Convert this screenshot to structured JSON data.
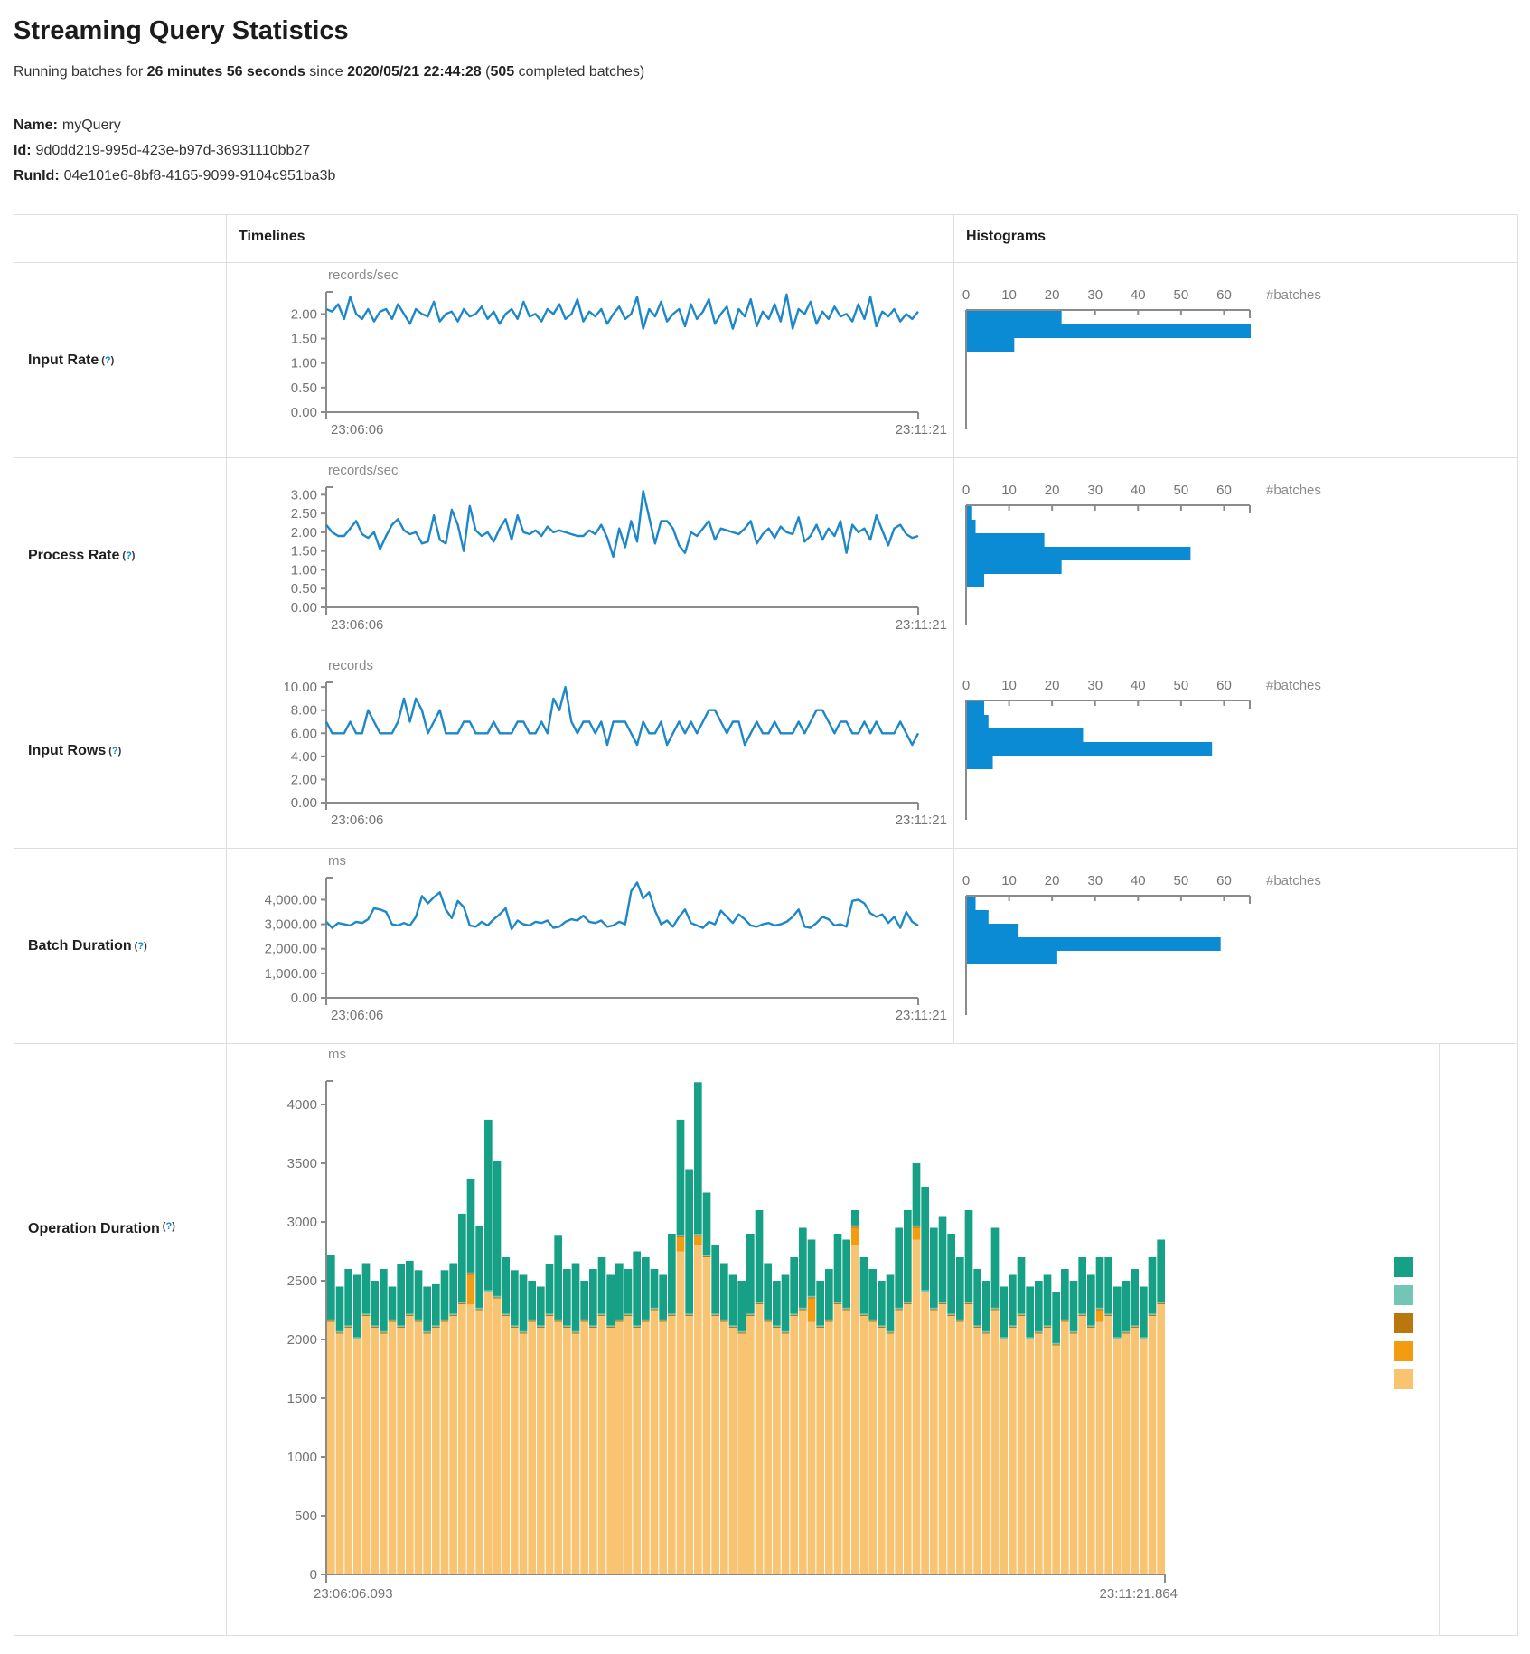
{
  "page": {
    "title": "Streaming Query Statistics"
  },
  "status": {
    "prefix": "Running batches for ",
    "duration": "26 minutes 56 seconds",
    "since": " since ",
    "start_time": "2020/05/21 22:44:28",
    "paren": " (",
    "completed_batches": "505",
    "suffix": " completed batches)"
  },
  "query": {
    "name_label": "Name:",
    "name": "myQuery",
    "id_label": "Id:",
    "id": "9d0dd219-995d-423e-b97d-36931110bb27",
    "runid_label": "RunId:",
    "runid": "04e101e6-8bf8-4165-9099-9104c951ba3b"
  },
  "help": {
    "open": "(",
    "q": "?",
    "close": ")"
  },
  "table": {
    "headers": {
      "timelines": "Timelines",
      "histograms": "Histograms"
    },
    "rows": [
      {
        "label": "Input Rate"
      },
      {
        "label": "Process Rate"
      },
      {
        "label": "Input Rows"
      },
      {
        "label": "Batch Duration"
      },
      {
        "label": "Operation Duration"
      }
    ]
  },
  "colors": {
    "line": "#1d87c8",
    "histogram_bar": "#0b8bd4",
    "axis": "#8b8b8b",
    "stack": {
      "latestOffset": "#16A085",
      "getBatch": "#73C6B6",
      "walCommit": "#B9770E",
      "queryPlanning": "#F39C12",
      "addBatch": "#F8C471"
    }
  },
  "chart_data": {
    "input_rate_timeline": {
      "type": "line",
      "unit": "records/sec",
      "x_start": "23:06:06",
      "x_end": "23:11:21",
      "ylim": [
        0,
        2.45
      ],
      "yticks": [
        2.0,
        1.5,
        1.0,
        0.5,
        0.0
      ],
      "ytick_labels": [
        "2.00",
        "1.50",
        "1.00",
        "0.50",
        "0.00"
      ],
      "values": [
        2.1,
        2.05,
        2.2,
        1.9,
        2.35,
        2.0,
        1.9,
        2.1,
        1.85,
        2.05,
        2.1,
        1.9,
        2.2,
        2.0,
        1.8,
        2.1,
        2.0,
        1.95,
        2.25,
        1.85,
        2.0,
        2.05,
        1.85,
        2.1,
        1.95,
        2.0,
        2.15,
        1.9,
        2.05,
        1.8,
        2.0,
        2.1,
        1.9,
        2.25,
        1.95,
        2.0,
        1.85,
        2.1,
        2.0,
        2.2,
        1.9,
        2.0,
        2.3,
        1.85,
        2.05,
        1.95,
        2.1,
        1.8,
        2.0,
        2.15,
        1.9,
        2.0,
        2.35,
        1.7,
        2.1,
        1.95,
        2.25,
        1.85,
        2.0,
        2.1,
        1.75,
        2.2,
        1.9,
        2.05,
        2.3,
        1.8,
        2.0,
        2.15,
        1.7,
        2.1,
        1.95,
        2.3,
        1.75,
        2.05,
        1.9,
        2.2,
        1.85,
        2.4,
        1.7,
        2.1,
        2.0,
        2.25,
        1.8,
        2.05,
        1.9,
        2.15,
        1.95,
        2.0,
        1.85,
        2.2,
        1.9,
        2.35,
        1.75,
        2.05,
        1.95,
        2.1,
        1.85,
        2.0,
        1.9,
        2.05
      ]
    },
    "input_rate_histogram": {
      "type": "hbar",
      "xlabel": "#batches",
      "xticks": [
        0,
        10,
        20,
        30,
        40,
        50,
        60
      ],
      "axis_max": 66,
      "values": [
        22,
        66,
        11
      ]
    },
    "process_rate_timeline": {
      "type": "line",
      "unit": "records/sec",
      "x_start": "23:06:06",
      "x_end": "23:11:21",
      "ylim": [
        0,
        3.2
      ],
      "yticks": [
        3.0,
        2.5,
        2.0,
        1.5,
        1.0,
        0.5,
        0.0
      ],
      "ytick_labels": [
        "3.00",
        "2.50",
        "2.00",
        "1.50",
        "1.00",
        "0.50",
        "0.00"
      ],
      "values": [
        2.2,
        2.0,
        1.9,
        1.9,
        2.1,
        2.3,
        1.95,
        1.85,
        2.0,
        1.55,
        1.9,
        2.2,
        2.35,
        2.05,
        1.95,
        2.0,
        1.7,
        1.75,
        2.45,
        1.8,
        1.7,
        2.6,
        2.2,
        1.5,
        2.7,
        2.05,
        1.9,
        2.0,
        1.75,
        2.1,
        2.35,
        1.8,
        2.45,
        2.0,
        1.95,
        2.05,
        1.9,
        2.15,
        2.0,
        2.05,
        2.0,
        1.95,
        1.9,
        1.9,
        2.05,
        1.95,
        2.2,
        1.85,
        1.35,
        2.1,
        1.6,
        2.3,
        1.75,
        3.1,
        2.4,
        1.7,
        2.3,
        2.3,
        2.1,
        1.65,
        1.45,
        2.0,
        1.9,
        2.1,
        2.3,
        1.8,
        2.1,
        2.05,
        2.0,
        1.95,
        2.1,
        2.3,
        1.7,
        1.95,
        2.1,
        1.85,
        2.15,
        2.0,
        1.95,
        2.4,
        1.75,
        1.9,
        2.2,
        1.8,
        2.1,
        1.9,
        2.3,
        1.45,
        2.2,
        2.0,
        2.1,
        1.8,
        2.45,
        2.05,
        1.65,
        2.1,
        2.2,
        1.95,
        1.85,
        1.9
      ]
    },
    "process_rate_histogram": {
      "type": "hbar",
      "xlabel": "#batches",
      "xticks": [
        0,
        10,
        20,
        30,
        40,
        50,
        60
      ],
      "axis_max": 66,
      "values": [
        1,
        2,
        18,
        52,
        22,
        4
      ]
    },
    "input_rows_timeline": {
      "type": "line",
      "unit": "records",
      "x_start": "23:06:06",
      "x_end": "23:11:21",
      "ylim": [
        0,
        10.4
      ],
      "yticks": [
        10,
        8,
        6,
        4,
        2,
        0
      ],
      "ytick_labels": [
        "10.00",
        "8.00",
        "6.00",
        "4.00",
        "2.00",
        "0.00"
      ],
      "values": [
        7,
        6,
        6,
        6,
        7,
        6,
        6,
        8,
        7,
        6,
        6,
        6,
        7,
        9,
        7,
        9,
        8,
        6,
        7,
        8,
        6,
        6,
        6,
        7,
        7,
        6,
        6,
        6,
        7,
        6,
        6,
        6,
        7,
        7,
        6,
        6,
        7,
        6,
        9,
        8,
        10,
        7,
        6,
        7,
        7,
        6,
        7,
        5,
        7,
        7,
        7,
        6,
        5,
        7,
        6,
        6,
        7,
        5,
        6,
        7,
        6,
        7,
        6,
        7,
        8,
        8,
        7,
        6,
        7,
        7,
        5,
        6,
        7,
        6,
        6,
        7,
        6,
        6,
        6,
        7,
        6,
        7,
        8,
        8,
        7,
        6,
        7,
        7,
        6,
        6,
        7,
        6,
        7,
        6,
        6,
        6,
        7,
        6,
        5,
        6
      ]
    },
    "input_rows_histogram": {
      "type": "hbar",
      "xlabel": "#batches",
      "xticks": [
        0,
        10,
        20,
        30,
        40,
        50,
        60
      ],
      "axis_max": 66,
      "values": [
        4,
        5,
        27,
        57,
        6
      ]
    },
    "batch_duration_timeline": {
      "type": "line",
      "unit": "ms",
      "x_start": "23:06:06",
      "x_end": "23:11:21",
      "ylim": [
        0,
        4900
      ],
      "yticks": [
        4000,
        3000,
        2000,
        1000,
        0
      ],
      "ytick_labels": [
        "4,000.00",
        "3,000.00",
        "2,000.00",
        "1,000.00",
        "0.00"
      ],
      "values": [
        3100,
        2850,
        3050,
        3000,
        2950,
        3100,
        3050,
        3200,
        3650,
        3600,
        3500,
        3000,
        2950,
        3050,
        2950,
        3300,
        4150,
        3850,
        4100,
        4300,
        3600,
        3250,
        3950,
        3700,
        2950,
        2900,
        3100,
        2950,
        3200,
        3400,
        3650,
        2800,
        3150,
        3000,
        2950,
        3100,
        3050,
        3150,
        2850,
        2900,
        3100,
        3200,
        3150,
        3350,
        3100,
        3050,
        3150,
        2900,
        2950,
        3100,
        3000,
        4350,
        4700,
        4050,
        4300,
        3550,
        3000,
        3150,
        2900,
        3300,
        3600,
        3050,
        2950,
        2850,
        3100,
        3000,
        3550,
        3300,
        3050,
        3400,
        3200,
        2950,
        2900,
        3000,
        3050,
        2950,
        3000,
        3100,
        3300,
        3600,
        2900,
        2850,
        3050,
        3300,
        3200,
        2950,
        3000,
        2900,
        3950,
        4000,
        3850,
        3450,
        3300,
        3400,
        3050,
        3300,
        2850,
        3500,
        3100,
        2950
      ]
    },
    "batch_duration_histogram": {
      "type": "hbar",
      "xlabel": "#batches",
      "xticks": [
        0,
        10,
        20,
        30,
        40,
        50,
        60
      ],
      "axis_max": 66,
      "values": [
        2,
        5,
        12,
        59,
        21
      ]
    },
    "operation_duration": {
      "type": "stacked",
      "unit": "ms",
      "x_start": "23:06:06.093",
      "x_end": "23:11:21.864",
      "ylim": [
        0,
        4200
      ],
      "yticks": [
        4000,
        3500,
        3000,
        2500,
        2000,
        1500,
        1000,
        500,
        0
      ],
      "ytick_labels": [
        "4000",
        "3500",
        "3000",
        "2500",
        "2000",
        "1500",
        "1000",
        "500",
        "0"
      ],
      "legend_order": [
        "latestOffset",
        "getBatch",
        "walCommit",
        "queryPlanning",
        "addBatch"
      ],
      "series": [
        {
          "id": "addBatch",
          "color": "#F8C471",
          "values": [
            2150,
            2050,
            2100,
            2000,
            2200,
            2100,
            2050,
            2150,
            2100,
            2200,
            2150,
            2050,
            2100,
            2150,
            2200,
            2300,
            2300,
            2250,
            2400,
            2350,
            2200,
            2100,
            2050,
            2150,
            2100,
            2200,
            2150,
            2100,
            2050,
            2150,
            2100,
            2200,
            2100,
            2150,
            2200,
            2100,
            2150,
            2250,
            2150,
            2200,
            2750,
            2200,
            2800,
            2700,
            2200,
            2150,
            2100,
            2050,
            2200,
            2300,
            2150,
            2100,
            2050,
            2200,
            2250,
            2150,
            2100,
            2150,
            2300,
            2250,
            2800,
            2200,
            2150,
            2100,
            2050,
            2250,
            2300,
            2850,
            2400,
            2250,
            2300,
            2200,
            2150,
            2300,
            2100,
            2050,
            2250,
            2000,
            2100,
            2200,
            2000,
            2050,
            2100,
            1950,
            2150,
            2050,
            2200,
            2100,
            2150,
            2200,
            2000,
            2050,
            2100,
            2000,
            2200,
            2300
          ]
        },
        {
          "id": "queryPlanning",
          "color": "#F39C12",
          "values": [
            0,
            0,
            0,
            0,
            0,
            0,
            0,
            0,
            0,
            0,
            0,
            0,
            0,
            0,
            0,
            0,
            250,
            0,
            0,
            0,
            0,
            0,
            0,
            0,
            0,
            0,
            0,
            0,
            0,
            0,
            0,
            0,
            0,
            0,
            0,
            0,
            0,
            0,
            0,
            0,
            120,
            0,
            80,
            0,
            0,
            0,
            0,
            0,
            0,
            0,
            0,
            0,
            0,
            0,
            0,
            200,
            0,
            0,
            0,
            0,
            150,
            0,
            0,
            0,
            0,
            0,
            0,
            100,
            0,
            0,
            0,
            0,
            0,
            0,
            0,
            0,
            0,
            0,
            0,
            0,
            0,
            0,
            0,
            0,
            0,
            0,
            0,
            0,
            100,
            0,
            0,
            0,
            0,
            0,
            0,
            0
          ]
        },
        {
          "id": "walCommit",
          "color": "#B9770E",
          "const": 8
        },
        {
          "id": "getBatch",
          "color": "#73C6B6",
          "const": 12
        },
        {
          "id": "latestOffset",
          "color": "#16A085",
          "values": [
            550,
            380,
            480,
            530,
            430,
            380,
            530,
            280,
            520,
            450,
            420,
            380,
            350,
            420,
            430,
            750,
            800,
            700,
            1450,
            1150,
            480,
            470,
            480,
            330,
            330,
            420,
            720,
            480,
            580,
            330,
            480,
            480,
            430,
            480,
            380,
            630,
            530,
            330,
            380,
            680,
            980,
            1230,
            1290,
            530,
            580,
            480,
            430,
            430,
            680,
            780,
            480,
            380,
            480,
            480,
            680,
            480,
            380,
            430,
            580,
            580,
            130,
            480,
            430,
            380,
            480,
            680,
            780,
            530,
            880,
            680,
            730,
            680,
            530,
            780,
            480,
            430,
            680,
            430,
            430,
            480,
            430,
            430,
            430,
            430,
            430,
            430,
            480,
            430,
            430,
            480,
            430,
            430,
            480,
            430,
            480,
            530
          ]
        }
      ]
    }
  }
}
